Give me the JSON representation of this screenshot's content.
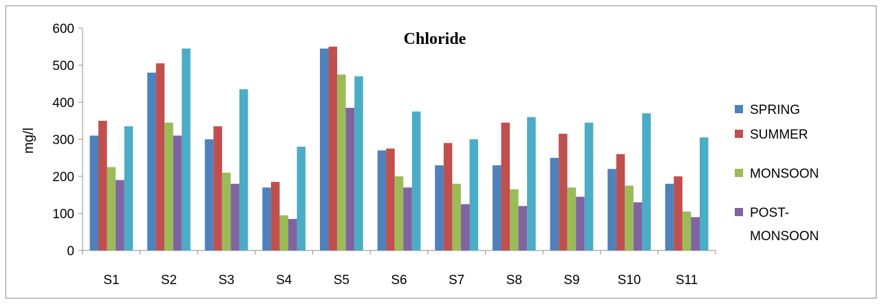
{
  "chart_data": {
    "type": "bar",
    "title": "Chloride",
    "xlabel": "",
    "ylabel": "mg/l",
    "ylim": [
      0,
      600
    ],
    "yticks": [
      0,
      100,
      200,
      300,
      400,
      500,
      600
    ],
    "categories": [
      "S1",
      "S2",
      "S3",
      "S4",
      "S5",
      "S6",
      "S7",
      "S8",
      "S9",
      "S10",
      "S11"
    ],
    "series": [
      {
        "name": "SPRING",
        "color": "#4f81bd",
        "values": [
          310,
          480,
          300,
          170,
          545,
          270,
          230,
          230,
          250,
          220,
          180
        ]
      },
      {
        "name": "SUMMER",
        "color": "#c0504d",
        "values": [
          350,
          505,
          335,
          185,
          550,
          275,
          290,
          345,
          315,
          260,
          200
        ]
      },
      {
        "name": "MONSOON",
        "color": "#9bbb59",
        "values": [
          225,
          345,
          210,
          95,
          475,
          200,
          180,
          165,
          170,
          175,
          105
        ]
      },
      {
        "name": "POST-MONSOON",
        "color": "#8064a2",
        "values": [
          190,
          310,
          180,
          85,
          385,
          170,
          125,
          120,
          145,
          130,
          90
        ]
      },
      {
        "name": "",
        "color": "#4bacc6",
        "values": [
          335,
          545,
          435,
          280,
          470,
          375,
          300,
          360,
          345,
          370,
          305
        ]
      }
    ],
    "legend_labels": {
      "spring": "SPRING",
      "summer": "SUMMER",
      "monsoon": "MONSOON",
      "post_monsoon_line1": "POST-",
      "post_monsoon_line2": "MONSOON"
    },
    "legend_position": "right",
    "grid": false
  }
}
